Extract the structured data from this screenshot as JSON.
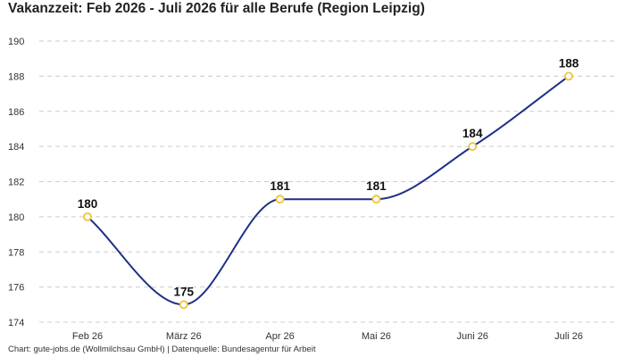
{
  "chart": {
    "title": "Vakanzzeit: Feb 2026 - Juli 2026 für alle Berufe (Region Leipzig)",
    "footer": "Chart: gute-jobs.de (Wollmilchsau GmbH) | Datenquelle: Bundesagentur für Arbeit"
  },
  "chart_data": {
    "type": "line",
    "title": "Vakanzzeit: Feb 2026 - Juli 2026 für alle Berufe (Region Leipzig)",
    "xlabel": "",
    "ylabel": "",
    "categories": [
      "Feb 26",
      "März 26",
      "Apr 26",
      "Mai 26",
      "Juni 26",
      "Juli 26"
    ],
    "series": [
      {
        "values": [
          180,
          175,
          181,
          181,
          184,
          188
        ]
      }
    ],
    "data_labels": [
      "180",
      "175",
      "181",
      "181",
      "184",
      "188"
    ],
    "ylim": [
      174,
      190
    ],
    "yticks": [
      174,
      176,
      178,
      180,
      182,
      184,
      186,
      188,
      190
    ],
    "grid": "horizontal-dashed",
    "legend": "none",
    "colors": {
      "line": "#1f2f86",
      "marker_stroke": "#f2c230",
      "marker_fill": "#ffffff",
      "grid": "#cccccc"
    }
  }
}
